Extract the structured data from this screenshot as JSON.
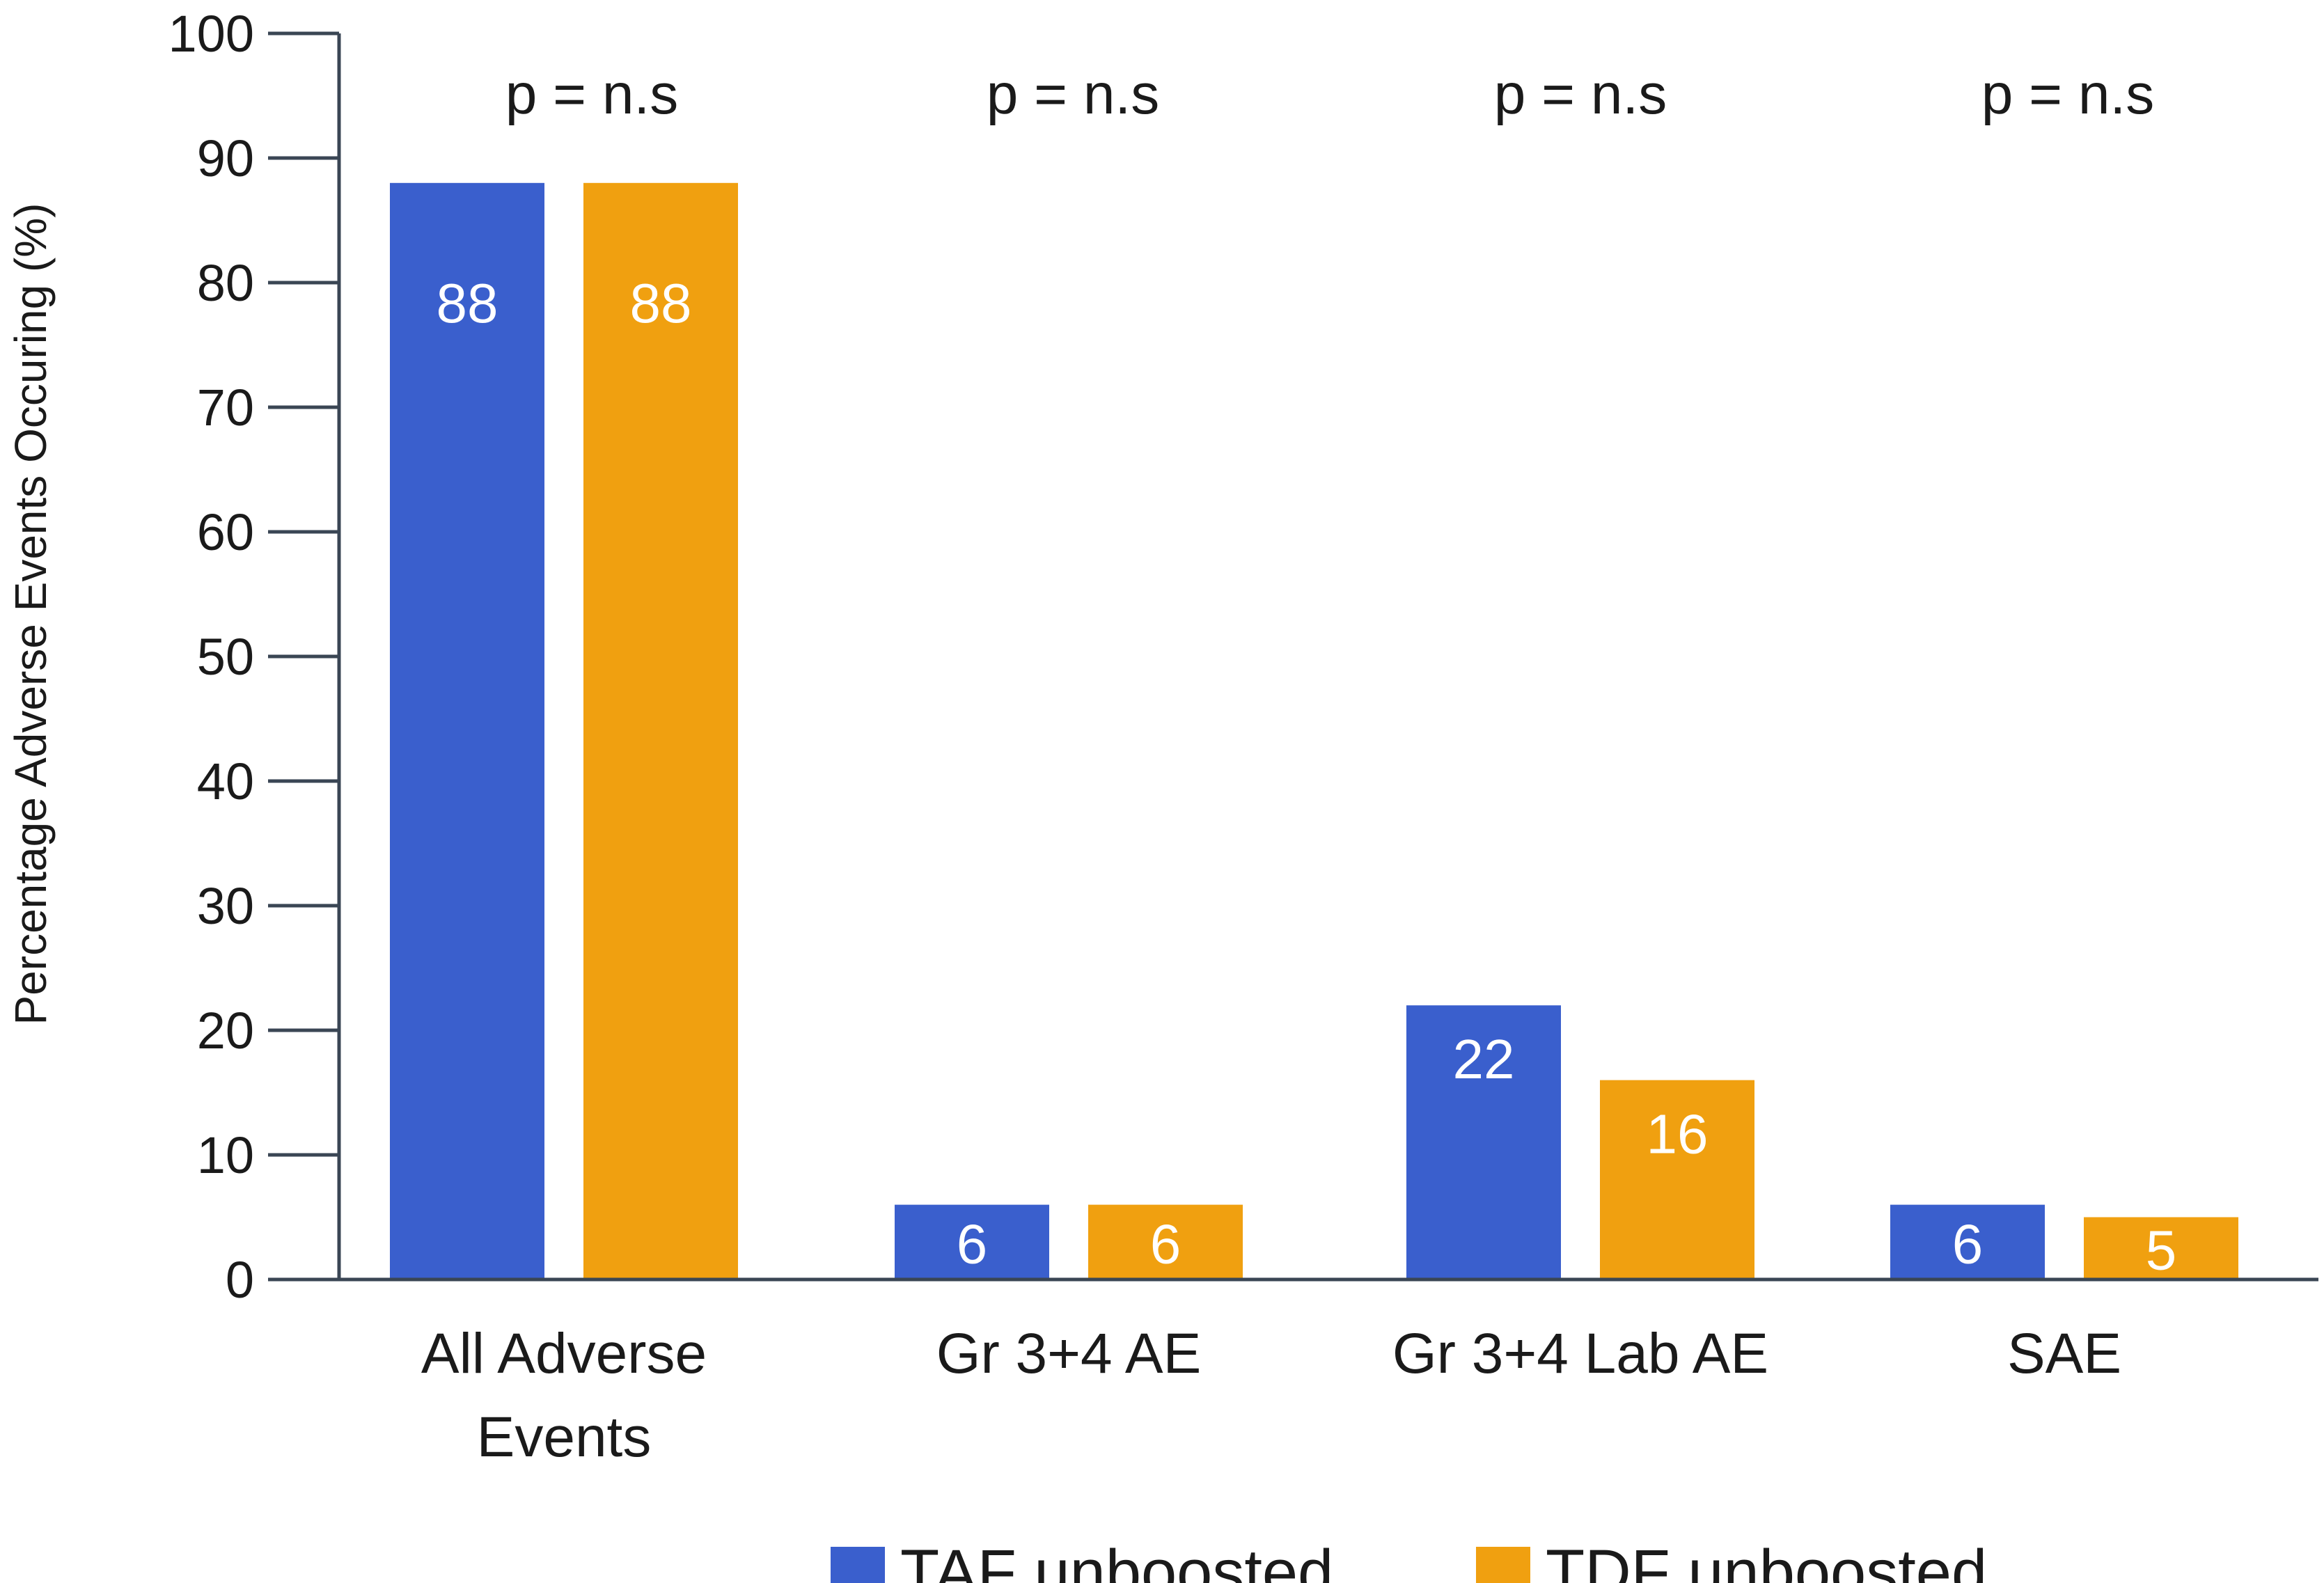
{
  "chart_data": {
    "type": "bar",
    "title": "",
    "xlabel": "",
    "ylabel": "Percentage Adverse Events Occuring (%)",
    "ylim": [
      0,
      100
    ],
    "yticks": [
      0,
      10,
      20,
      30,
      40,
      50,
      60,
      70,
      80,
      90,
      100
    ],
    "grid": false,
    "legend_position": "bottom",
    "categories": [
      [
        "All Adverse",
        "Events"
      ],
      [
        "Gr 3+4 AE"
      ],
      [
        "Gr 3+4 Lab AE"
      ],
      [
        "SAE"
      ]
    ],
    "series": [
      {
        "name": "TAF unboosted",
        "color": "#3a5fcd",
        "values": [
          88,
          6,
          22,
          6
        ],
        "labels": [
          "88",
          "6",
          "22",
          "6"
        ]
      },
      {
        "name": "TDF unboosted",
        "color": "#f0a010",
        "values": [
          88,
          6,
          16,
          5
        ],
        "labels": [
          "88",
          "6",
          "16",
          "5"
        ]
      }
    ],
    "annotations": [
      "p = n.s",
      "p = n.s",
      "p = n.s",
      "p = n.s"
    ]
  }
}
